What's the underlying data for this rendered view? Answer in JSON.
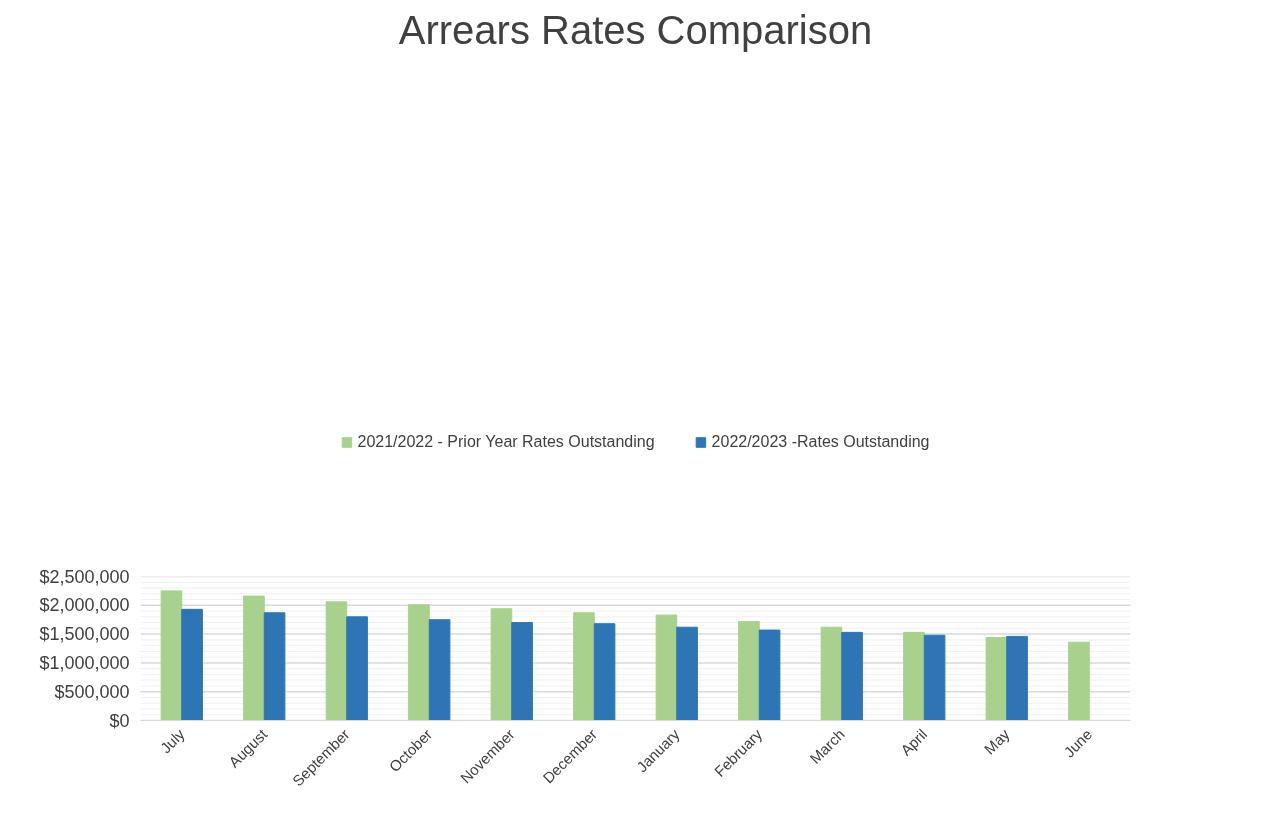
{
  "chart_data": {
    "type": "bar",
    "title": "Arrears Rates Comparison",
    "categories": [
      "July",
      "August",
      "September",
      "October",
      "November",
      "December",
      "January",
      "February",
      "March",
      "April",
      "May",
      "June"
    ],
    "series": [
      {
        "name": "2021/2022 - Prior Year Rates Outstanding",
        "color": "#a9d18e",
        "values": [
          2250000,
          2160000,
          2060000,
          2010000,
          1940000,
          1870000,
          1830000,
          1720000,
          1620000,
          1530000,
          1440000,
          1360000
        ]
      },
      {
        "name": "2022/2023 -Rates Outstanding",
        "color": "#2e75b6",
        "values": [
          1930000,
          1870000,
          1800000,
          1750000,
          1700000,
          1680000,
          1620000,
          1570000,
          1530000,
          1480000,
          1460000,
          null
        ]
      }
    ],
    "ylim": [
      0,
      2500000
    ],
    "yticks": [
      {
        "value": 0,
        "label": "$0"
      },
      {
        "value": 100000,
        "label": null
      },
      {
        "value": 200000,
        "label": null
      },
      {
        "value": 300000,
        "label": null
      },
      {
        "value": 400000,
        "label": null
      },
      {
        "value": 500000,
        "label": "$500,000"
      },
      {
        "value": 600000,
        "label": null
      },
      {
        "value": 700000,
        "label": null
      },
      {
        "value": 800000,
        "label": null
      },
      {
        "value": 900000,
        "label": null
      },
      {
        "value": 1000000,
        "label": "$1,000,000"
      },
      {
        "value": 1100000,
        "label": null
      },
      {
        "value": 1200000,
        "label": null
      },
      {
        "value": 1300000,
        "label": null
      },
      {
        "value": 1400000,
        "label": null
      },
      {
        "value": 1500000,
        "label": "$1,500,000"
      },
      {
        "value": 1600000,
        "label": null
      },
      {
        "value": 1700000,
        "label": null
      },
      {
        "value": 1800000,
        "label": null
      },
      {
        "value": 1900000,
        "label": null
      },
      {
        "value": 2000000,
        "label": "$2,000,000"
      },
      {
        "value": 2100000,
        "label": null
      },
      {
        "value": 2200000,
        "label": null
      },
      {
        "value": 2300000,
        "label": null
      },
      {
        "value": 2400000,
        "label": null
      },
      {
        "value": 2500000,
        "label": "$2,500,000"
      }
    ],
    "grid": "y",
    "legend": "top"
  }
}
